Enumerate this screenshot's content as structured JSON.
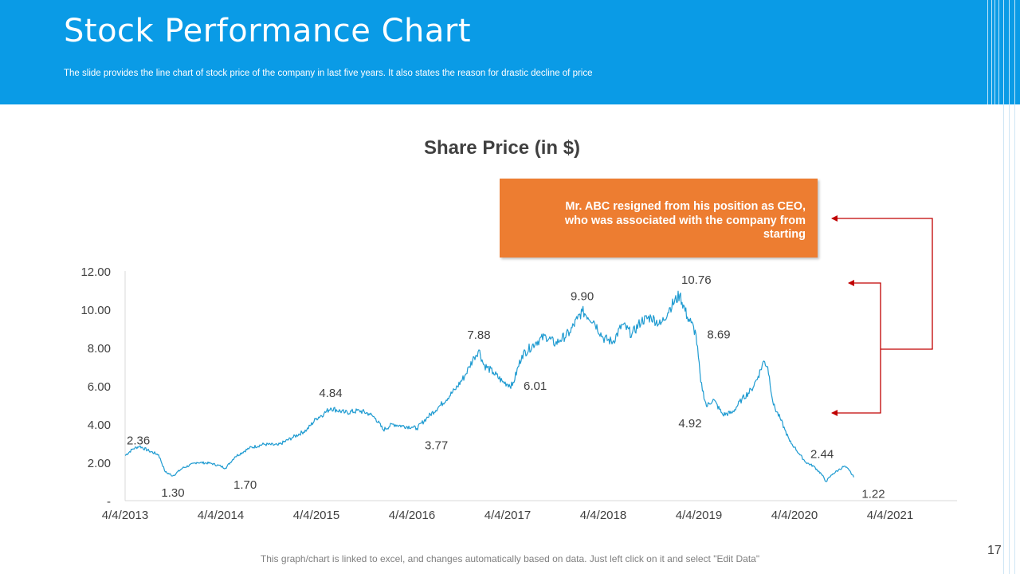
{
  "slide": {
    "title": "Stock Performance Chart",
    "subtitle": "The slide provides the line chart of stock price of the company in last five years. It also states the reason for drastic decline of price",
    "footer_note": "This graph/chart is linked to excel, and changes automatically based on data. Just left click on it and select \"Edit Data\"",
    "page_number": "17"
  },
  "colors": {
    "header": "#0a9be6",
    "series_line": "#1f9bd1",
    "callout_bg": "#ed7d31",
    "arrow": "#c00000"
  },
  "callout": {
    "text": "Mr. ABC resigned from his position as CEO, who was associated with the company from starting"
  },
  "chart_data": {
    "type": "line",
    "title": "Share Price (in $)",
    "xlabel": "",
    "ylabel": "",
    "ylim": [
      0,
      12
    ],
    "yticks": [
      0,
      2,
      4,
      6,
      8,
      10,
      12
    ],
    "ytick_labels": [
      "-",
      "2.00",
      "4.00",
      "6.00",
      "8.00",
      "10.00",
      "12.00"
    ],
    "xlim": [
      2013.0,
      2021.7
    ],
    "xticks": [
      2013.0,
      2014.0,
      2015.0,
      2016.0,
      2017.0,
      2018.0,
      2019.0,
      2020.0,
      2021.0
    ],
    "xtick_labels": [
      "4/4/2013",
      "4/4/2014",
      "4/4/2015",
      "4/4/2016",
      "4/4/2017",
      "4/4/2018",
      "4/4/2019",
      "4/4/2020",
      "4/4/2021"
    ],
    "series": [
      {
        "name": "Share Price",
        "points": [
          [
            2013.0,
            2.36
          ],
          [
            2013.08,
            2.7
          ],
          [
            2013.15,
            2.85
          ],
          [
            2013.25,
            2.6
          ],
          [
            2013.35,
            2.4
          ],
          [
            2013.42,
            1.5
          ],
          [
            2013.5,
            1.3
          ],
          [
            2013.6,
            1.7
          ],
          [
            2013.75,
            2.0
          ],
          [
            2013.9,
            1.95
          ],
          [
            2014.0,
            1.8
          ],
          [
            2014.05,
            1.7
          ],
          [
            2014.15,
            2.3
          ],
          [
            2014.3,
            2.75
          ],
          [
            2014.45,
            2.95
          ],
          [
            2014.6,
            2.9
          ],
          [
            2014.75,
            3.3
          ],
          [
            2014.9,
            3.7
          ],
          [
            2015.0,
            4.3
          ],
          [
            2015.08,
            4.55
          ],
          [
            2015.15,
            4.84
          ],
          [
            2015.3,
            4.6
          ],
          [
            2015.45,
            4.7
          ],
          [
            2015.55,
            4.55
          ],
          [
            2015.62,
            4.3
          ],
          [
            2015.7,
            3.7
          ],
          [
            2015.8,
            4.0
          ],
          [
            2015.9,
            3.9
          ],
          [
            2016.0,
            3.85
          ],
          [
            2016.05,
            3.77
          ],
          [
            2016.15,
            4.3
          ],
          [
            2016.3,
            5.0
          ],
          [
            2016.45,
            5.8
          ],
          [
            2016.55,
            6.5
          ],
          [
            2016.6,
            7.0
          ],
          [
            2016.65,
            7.5
          ],
          [
            2016.7,
            7.88
          ],
          [
            2016.75,
            7.1
          ],
          [
            2016.85,
            6.7
          ],
          [
            2016.95,
            6.2
          ],
          [
            2017.05,
            6.01
          ],
          [
            2017.15,
            7.6
          ],
          [
            2017.3,
            8.3
          ],
          [
            2017.4,
            8.6
          ],
          [
            2017.5,
            8.2
          ],
          [
            2017.55,
            8.4
          ],
          [
            2017.65,
            8.8
          ],
          [
            2017.73,
            9.5
          ],
          [
            2017.78,
            9.9
          ],
          [
            2017.9,
            9.4
          ],
          [
            2018.0,
            8.5
          ],
          [
            2018.1,
            8.3
          ],
          [
            2018.2,
            9.2
          ],
          [
            2018.3,
            8.7
          ],
          [
            2018.4,
            9.4
          ],
          [
            2018.5,
            9.6
          ],
          [
            2018.6,
            9.2
          ],
          [
            2018.7,
            10.1
          ],
          [
            2018.8,
            10.76
          ],
          [
            2018.88,
            9.6
          ],
          [
            2018.92,
            9.3
          ],
          [
            2018.97,
            8.69
          ],
          [
            2019.02,
            6.2
          ],
          [
            2019.08,
            4.92
          ],
          [
            2019.15,
            5.3
          ],
          [
            2019.25,
            4.5
          ],
          [
            2019.35,
            4.6
          ],
          [
            2019.45,
            5.3
          ],
          [
            2019.55,
            5.8
          ],
          [
            2019.62,
            6.5
          ],
          [
            2019.68,
            7.3
          ],
          [
            2019.72,
            7.0
          ],
          [
            2019.78,
            5.0
          ],
          [
            2019.85,
            4.3
          ],
          [
            2019.9,
            3.7
          ],
          [
            2019.95,
            3.1
          ],
          [
            2020.0,
            2.8
          ],
          [
            2020.05,
            2.44
          ],
          [
            2020.12,
            2.0
          ],
          [
            2020.2,
            1.8
          ],
          [
            2020.28,
            1.4
          ],
          [
            2020.33,
            1.0
          ],
          [
            2020.4,
            1.4
          ],
          [
            2020.46,
            1.6
          ],
          [
            2020.52,
            1.8
          ],
          [
            2020.57,
            1.6
          ],
          [
            2020.62,
            1.22
          ]
        ]
      }
    ],
    "data_labels": [
      {
        "x": 2013.0,
        "y": 2.36,
        "text": "2.36",
        "pos": "above-right"
      },
      {
        "x": 2013.5,
        "y": 1.3,
        "text": "1.30",
        "pos": "below"
      },
      {
        "x": 2014.05,
        "y": 1.7,
        "text": "1.70",
        "pos": "below-right"
      },
      {
        "x": 2015.15,
        "y": 4.84,
        "text": "4.84",
        "pos": "above"
      },
      {
        "x": 2016.05,
        "y": 3.77,
        "text": "3.77",
        "pos": "below-right"
      },
      {
        "x": 2016.7,
        "y": 7.88,
        "text": "7.88",
        "pos": "above"
      },
      {
        "x": 2017.05,
        "y": 6.01,
        "text": "6.01",
        "pos": "right"
      },
      {
        "x": 2017.78,
        "y": 9.9,
        "text": "9.90",
        "pos": "above"
      },
      {
        "x": 2018.8,
        "y": 10.76,
        "text": "10.76",
        "pos": "above-right"
      },
      {
        "x": 2018.97,
        "y": 8.69,
        "text": "8.69",
        "pos": "right"
      },
      {
        "x": 2019.08,
        "y": 4.92,
        "text": "4.92",
        "pos": "below-left"
      },
      {
        "x": 2020.05,
        "y": 2.44,
        "text": "2.44",
        "pos": "right"
      },
      {
        "x": 2020.62,
        "y": 1.22,
        "text": "1.22",
        "pos": "below-right"
      }
    ]
  }
}
